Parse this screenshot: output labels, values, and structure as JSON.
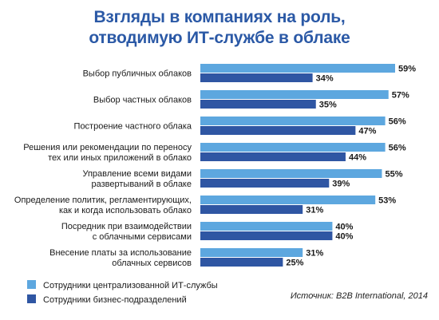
{
  "chart_data": {
    "type": "bar",
    "orientation": "horizontal",
    "title": "Взгляды в компаниях на роль,",
    "subtitle": "отводимую ИТ-службе в облаке",
    "categories": [
      [
        "Выбор публичных облаков"
      ],
      [
        "Выбор частных облаков"
      ],
      [
        "Построение частного облака"
      ],
      [
        "Решения или рекомендации по переносу",
        "тех или иных приложений в облако"
      ],
      [
        "Управление всеми видами",
        "развертываний в облаке"
      ],
      [
        "Определение политик, регламентирующих,",
        "как и когда использовать облако"
      ],
      [
        "Посредник при взаимодействии",
        "с облачными сервисами"
      ],
      [
        "Внесение платы за использование",
        "облачных сервисов"
      ]
    ],
    "series": [
      {
        "name": "Сотрудники централизованной ИТ-службы",
        "color": "#5da7df",
        "values": [
          59,
          57,
          56,
          56,
          55,
          53,
          40,
          31
        ]
      },
      {
        "name": "Сотрудники бизнес-подразделений",
        "color": "#2f56a3",
        "values": [
          34,
          35,
          47,
          44,
          39,
          31,
          40,
          25
        ]
      }
    ],
    "value_suffix": "%",
    "xlim": [
      0,
      59
    ],
    "legend_position": "bottom-left",
    "source": "Источник: B2B International, 2014"
  }
}
